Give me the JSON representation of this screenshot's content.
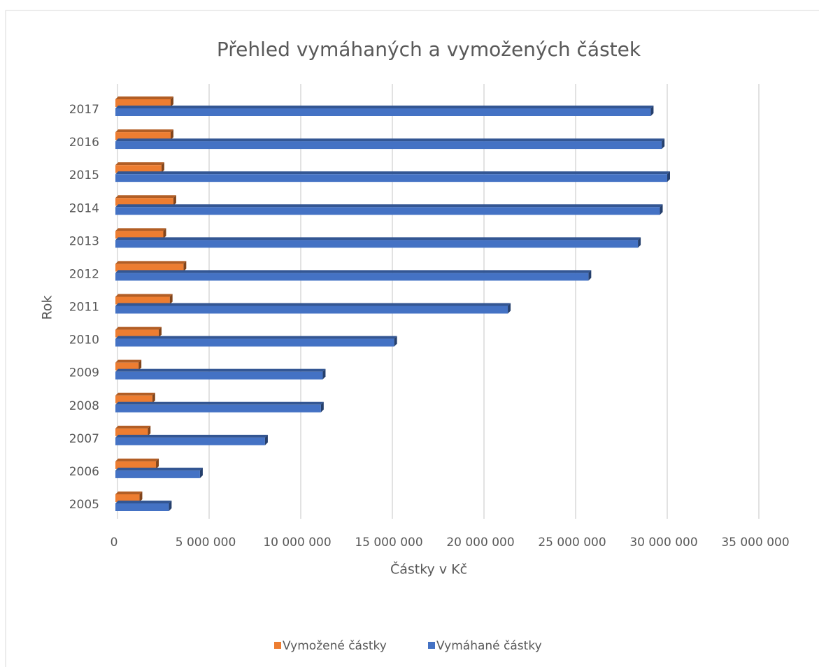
{
  "chart_data": {
    "type": "bar",
    "orientation": "horizontal",
    "title": "Přehled vymáhaných a vymožených částek",
    "xlabel": "Částky v Kč",
    "ylabel": "Rok",
    "categories": [
      "2005",
      "2006",
      "2007",
      "2008",
      "2009",
      "2010",
      "2011",
      "2012",
      "2013",
      "2014",
      "2015",
      "2016",
      "2017"
    ],
    "series": [
      {
        "name": "Vymožené částky",
        "color": "#ed7d31",
        "values": [
          1200000,
          2100000,
          1650000,
          1900000,
          1150000,
          2250000,
          2850000,
          3600000,
          2500000,
          3050000,
          2400000,
          2900000,
          2900000
        ]
      },
      {
        "name": "Vymáhané částky",
        "color": "#4472c4",
        "values": [
          2800000,
          4500000,
          8050000,
          11100000,
          11200000,
          15100000,
          21300000,
          25700000,
          28400000,
          29600000,
          30000000,
          29700000,
          29100000
        ]
      }
    ],
    "xlim": [
      0,
      37000000
    ],
    "xticks": [
      0,
      {
        "value": 5000000,
        "label": "5 000 000"
      },
      {
        "value": 10000000,
        "label": "10 000 000"
      },
      {
        "value": 15000000,
        "label": "15 000 000"
      },
      {
        "value": 20000000,
        "label": "20 000 000"
      },
      {
        "value": 25000000,
        "label": "25 000 000"
      },
      {
        "value": 30000000,
        "label": "30 000 000"
      },
      {
        "value": 35000000,
        "label": "35 000 000"
      }
    ],
    "grid": true,
    "legend": "bottom"
  }
}
